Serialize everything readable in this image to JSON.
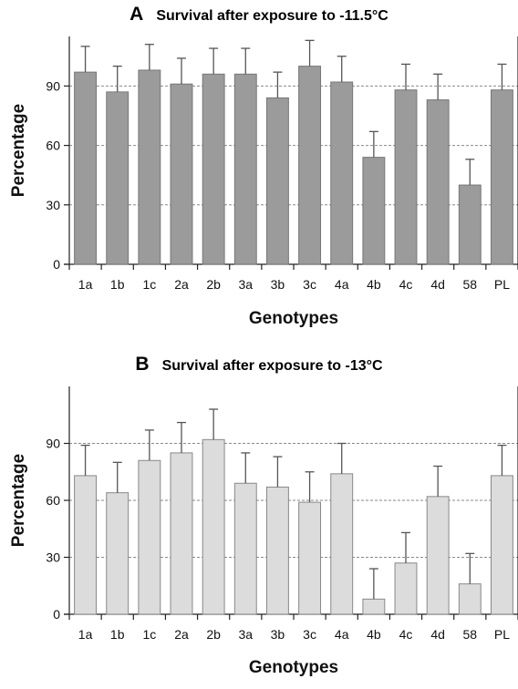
{
  "chart_data": [
    {
      "type": "bar",
      "panel_label": "A",
      "title": "Survival after exposure to -11.5°C",
      "xlabel": "Genotypes",
      "ylabel": "Percentage",
      "ylim": [
        0,
        115
      ],
      "yticks": [
        0,
        30,
        60,
        90
      ],
      "grid": "horizontal dashed at 30, 60, 90",
      "bar_color": "#9b9b9b",
      "bar_stroke": "#777777",
      "categories": [
        "1a",
        "1b",
        "1c",
        "2a",
        "2b",
        "3a",
        "3b",
        "3c",
        "4a",
        "4b",
        "4c",
        "4d",
        "58",
        "PL"
      ],
      "values": [
        97,
        87,
        98,
        91,
        96,
        96,
        84,
        100,
        92,
        54,
        88,
        83,
        40,
        88
      ],
      "error_upper": [
        13,
        13,
        13,
        13,
        13,
        13,
        13,
        13,
        13,
        13,
        13,
        13,
        13,
        13
      ]
    },
    {
      "type": "bar",
      "panel_label": "B",
      "title": "Survival after exposure to -13°C",
      "xlabel": "Genotypes",
      "ylabel": "Percentage",
      "ylim": [
        0,
        120
      ],
      "yticks": [
        0,
        30,
        60,
        90
      ],
      "grid": "horizontal dashed at 30, 60, 90",
      "bar_color": "#dcdcdc",
      "bar_stroke": "#888888",
      "categories": [
        "1a",
        "1b",
        "1c",
        "2a",
        "2b",
        "3a",
        "3b",
        "3c",
        "4a",
        "4b",
        "4c",
        "4d",
        "58",
        "PL"
      ],
      "values": [
        73,
        64,
        81,
        85,
        92,
        69,
        67,
        59,
        74,
        8,
        27,
        62,
        16,
        73
      ],
      "error_upper": [
        16,
        16,
        16,
        16,
        16,
        16,
        16,
        16,
        16,
        16,
        16,
        16,
        16,
        16
      ]
    }
  ]
}
